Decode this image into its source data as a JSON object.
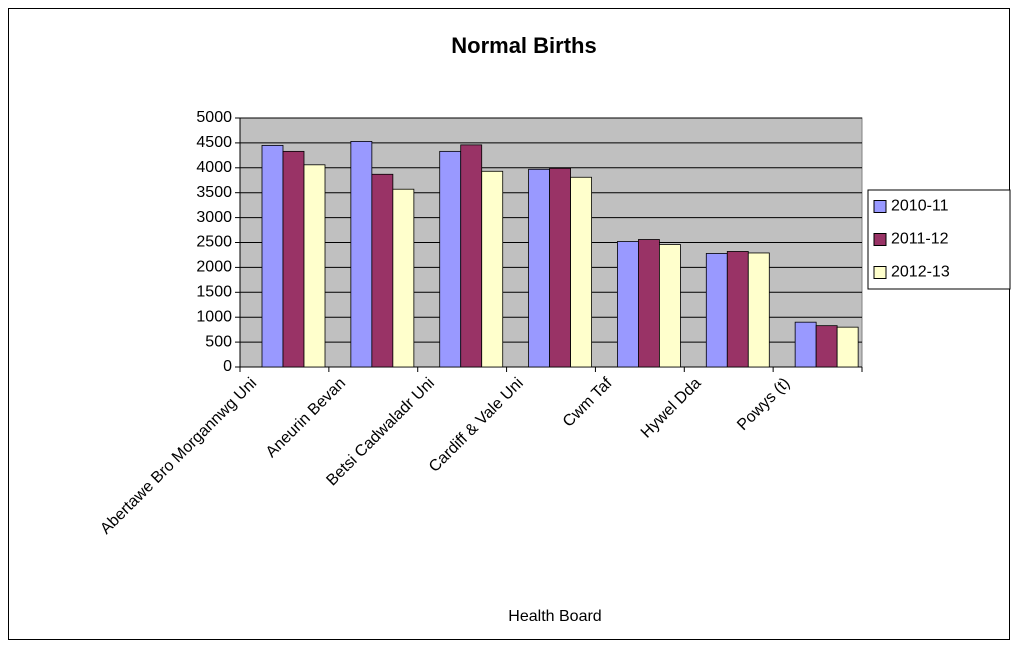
{
  "chart_data": {
    "type": "bar",
    "title": "Normal Births",
    "x_label": "Health Board",
    "categories": [
      "Abertawe Bro Morgannwg Uni",
      "Aneurin Bevan",
      "Betsi Cadwaladr Uni",
      "Cardiff & Vale Uni",
      "Cwm Taf",
      "Hywel Dda",
      "Powys (t)"
    ],
    "series": [
      {
        "name": "2010-11",
        "color": "#9999ff",
        "values": [
          4450,
          4530,
          4330,
          3970,
          2520,
          2280,
          900
        ]
      },
      {
        "name": "2011-12",
        "color": "#993366",
        "values": [
          4330,
          3870,
          4460,
          3990,
          2560,
          2320,
          830
        ]
      },
      {
        "name": "2012-13",
        "color": "#ffffcc",
        "values": [
          4060,
          3570,
          3930,
          3810,
          2460,
          2290,
          800
        ]
      }
    ],
    "ylim": [
      0,
      5000
    ],
    "yticks": [
      0,
      500,
      1000,
      1500,
      2000,
      2500,
      3000,
      3500,
      4000,
      4500,
      5000
    ],
    "grid": true,
    "legend": "right",
    "plot_background": "#c0c0c0"
  }
}
